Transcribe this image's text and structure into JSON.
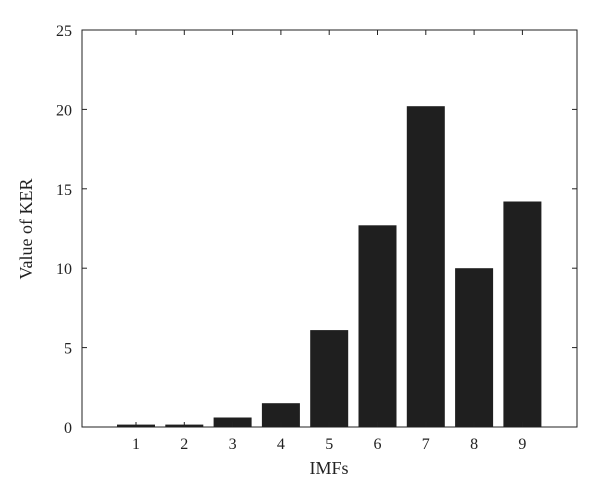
{
  "chart_data": {
    "type": "bar",
    "title": "",
    "xlabel": "IMFs",
    "ylabel": "Value of KER",
    "categories": [
      "1",
      "2",
      "3",
      "4",
      "5",
      "6",
      "7",
      "8",
      "9"
    ],
    "values": [
      0.15,
      0.15,
      0.6,
      1.5,
      6.1,
      12.7,
      20.2,
      10.0,
      14.2
    ],
    "ylim": [
      0,
      25
    ],
    "yticks": [
      0,
      5,
      10,
      15,
      20,
      25
    ],
    "ytick_labels": [
      "0",
      "5",
      "10",
      "15",
      "20",
      "25"
    ],
    "grid": false,
    "legend": "none",
    "colors": {
      "bar": "#1f1f1f",
      "axis": "#222222",
      "background": "#ffffff"
    }
  }
}
